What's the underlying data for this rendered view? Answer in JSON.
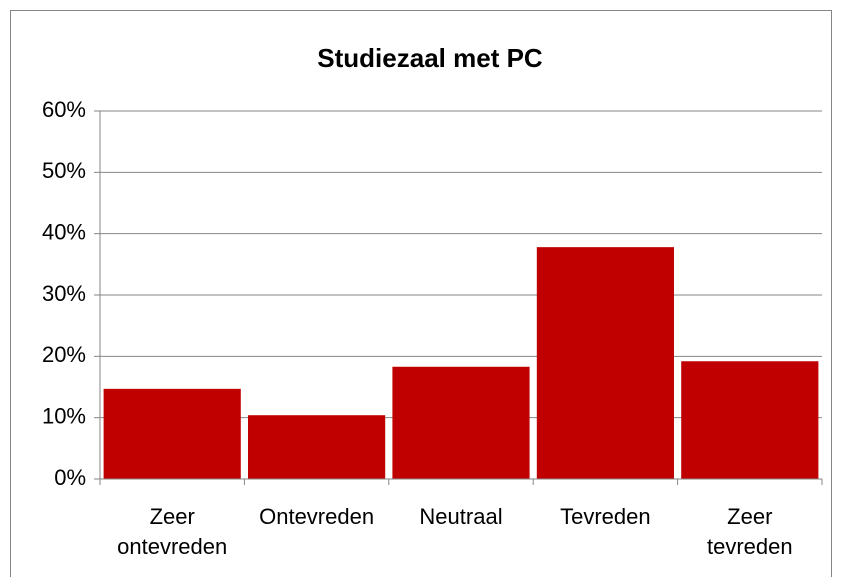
{
  "chart_data": {
    "type": "bar",
    "title": "Studiezaal met PC",
    "categories": [
      "Zeer ontevreden",
      "Ontevreden",
      "Neutraal",
      "Tevreden",
      "Zeer tevreden"
    ],
    "values": [
      14.7,
      10.4,
      18.3,
      37.8,
      19.2
    ],
    "color": "#c00000",
    "ylim": [
      0,
      60
    ],
    "yticks": [
      {
        "value": 0,
        "label": "0%"
      },
      {
        "value": 10,
        "label": "10%"
      },
      {
        "value": 20,
        "label": "20%"
      },
      {
        "value": 30,
        "label": "30%"
      },
      {
        "value": 40,
        "label": "40%"
      },
      {
        "value": 50,
        "label": "50%"
      },
      {
        "value": 60,
        "label": "60%"
      }
    ],
    "grid": true
  }
}
